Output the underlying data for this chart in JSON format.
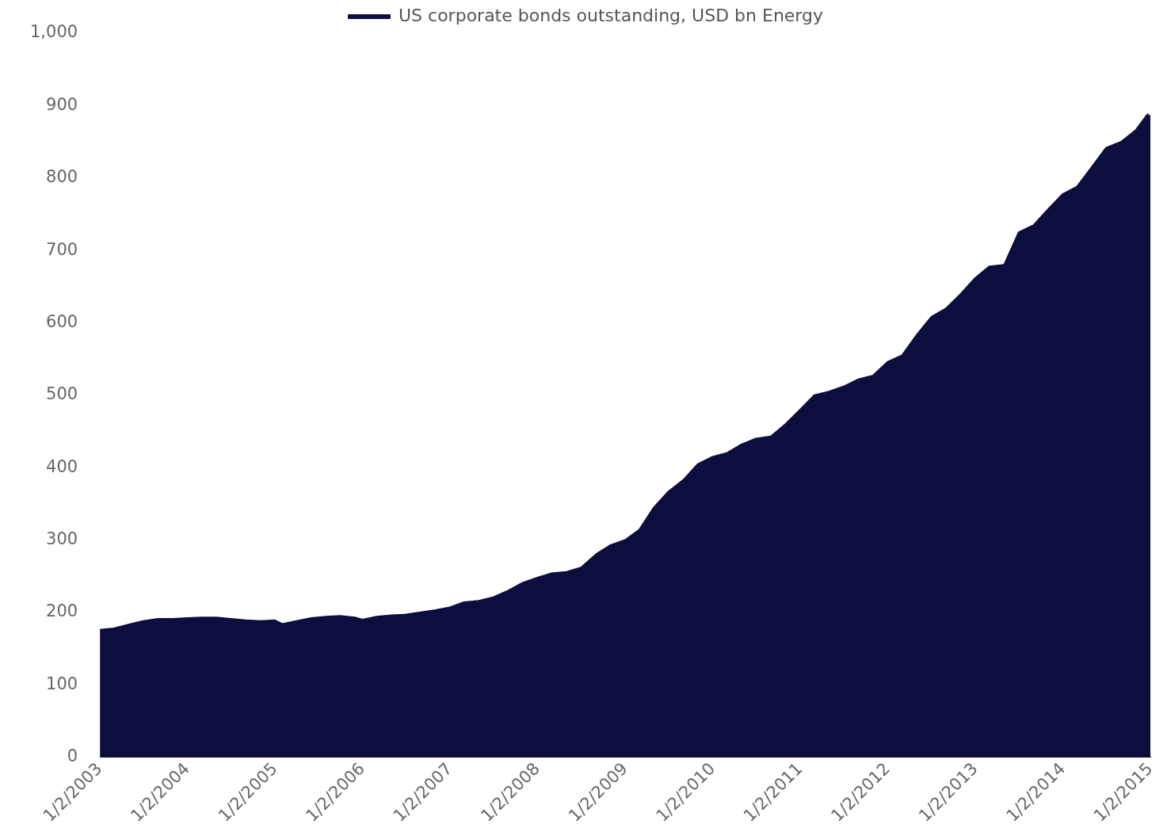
{
  "chart_data": {
    "type": "area",
    "legend": "top",
    "grid": false,
    "x": [
      "2003-01-02",
      "2003-03",
      "2003-05",
      "2003-07",
      "2003-09",
      "2003-11",
      "2004-01",
      "2004-03",
      "2004-05",
      "2004-07",
      "2004-09",
      "2004-11",
      "2005-01",
      "2005-02",
      "2005-04",
      "2005-06",
      "2005-08",
      "2005-10",
      "2005-12",
      "2006-01",
      "2006-03",
      "2006-05",
      "2006-07",
      "2006-09",
      "2006-11",
      "2007-01",
      "2007-03",
      "2007-05",
      "2007-07",
      "2007-09",
      "2007-11",
      "2008-01",
      "2008-03",
      "2008-05",
      "2008-07",
      "2008-09",
      "2008-11",
      "2009-01",
      "2009-03",
      "2009-05",
      "2009-07",
      "2009-09",
      "2009-11",
      "2010-01",
      "2010-03",
      "2010-05",
      "2010-07",
      "2010-09",
      "2010-11",
      "2011-01",
      "2011-03",
      "2011-05",
      "2011-07",
      "2011-09",
      "2011-11",
      "2012-01",
      "2012-03",
      "2012-05",
      "2012-07",
      "2012-09",
      "2012-11",
      "2013-01",
      "2013-03",
      "2013-05",
      "2013-07",
      "2013-09",
      "2013-11",
      "2014-01",
      "2014-03",
      "2014-05",
      "2014-07",
      "2014-09",
      "2014-11",
      "2014-12-20",
      "2015-01-02"
    ],
    "series": [
      {
        "name": "US corporate bonds outstanding, USD bn Energy",
        "color": "#0e0e3e",
        "values": [
          176,
          178,
          183,
          188,
          191,
          191,
          192,
          193,
          193,
          191,
          189,
          188,
          189,
          184,
          188,
          192,
          194,
          195,
          193,
          190,
          194,
          196,
          197,
          200,
          203,
          207,
          214,
          216,
          221,
          230,
          241,
          248,
          254,
          256,
          262,
          280,
          293,
          300,
          314,
          345,
          367,
          383,
          405,
          415,
          420,
          432,
          440,
          443,
          460,
          480,
          500,
          505,
          512,
          522,
          527,
          546,
          555,
          583,
          608,
          620,
          640,
          662,
          678,
          680,
          725,
          735,
          757,
          778,
          788,
          815,
          842,
          850,
          866,
          888,
          885
        ]
      }
    ],
    "xlim": [
      "2003-01-02",
      "2015-01-02"
    ],
    "xticks": [
      {
        "value": "2003-01-02",
        "label": "1/2/2003"
      },
      {
        "value": "2004-01-02",
        "label": "1/2/2004"
      },
      {
        "value": "2005-01-02",
        "label": "1/2/2005"
      },
      {
        "value": "2006-01-02",
        "label": "1/2/2006"
      },
      {
        "value": "2007-01-02",
        "label": "1/2/2007"
      },
      {
        "value": "2008-01-02",
        "label": "1/2/2008"
      },
      {
        "value": "2009-01-02",
        "label": "1/2/2009"
      },
      {
        "value": "2010-01-02",
        "label": "1/2/2010"
      },
      {
        "value": "2011-01-02",
        "label": "1/2/2011"
      },
      {
        "value": "2012-01-02",
        "label": "1/2/2012"
      },
      {
        "value": "2013-01-02",
        "label": "1/2/2013"
      },
      {
        "value": "2014-01-02",
        "label": "1/2/2014"
      },
      {
        "value": "2015-01-02",
        "label": "1/2/2015"
      }
    ],
    "ylim": [
      0,
      1000
    ],
    "yticks": [
      {
        "value": 0,
        "label": "0"
      },
      {
        "value": 100,
        "label": "100"
      },
      {
        "value": 200,
        "label": "200"
      },
      {
        "value": 300,
        "label": "300"
      },
      {
        "value": 400,
        "label": "400"
      },
      {
        "value": 500,
        "label": "500"
      },
      {
        "value": 600,
        "label": "600"
      },
      {
        "value": 700,
        "label": "700"
      },
      {
        "value": 800,
        "label": "800"
      },
      {
        "value": 900,
        "label": "900"
      },
      {
        "value": 1000,
        "label": "1,000"
      }
    ]
  }
}
